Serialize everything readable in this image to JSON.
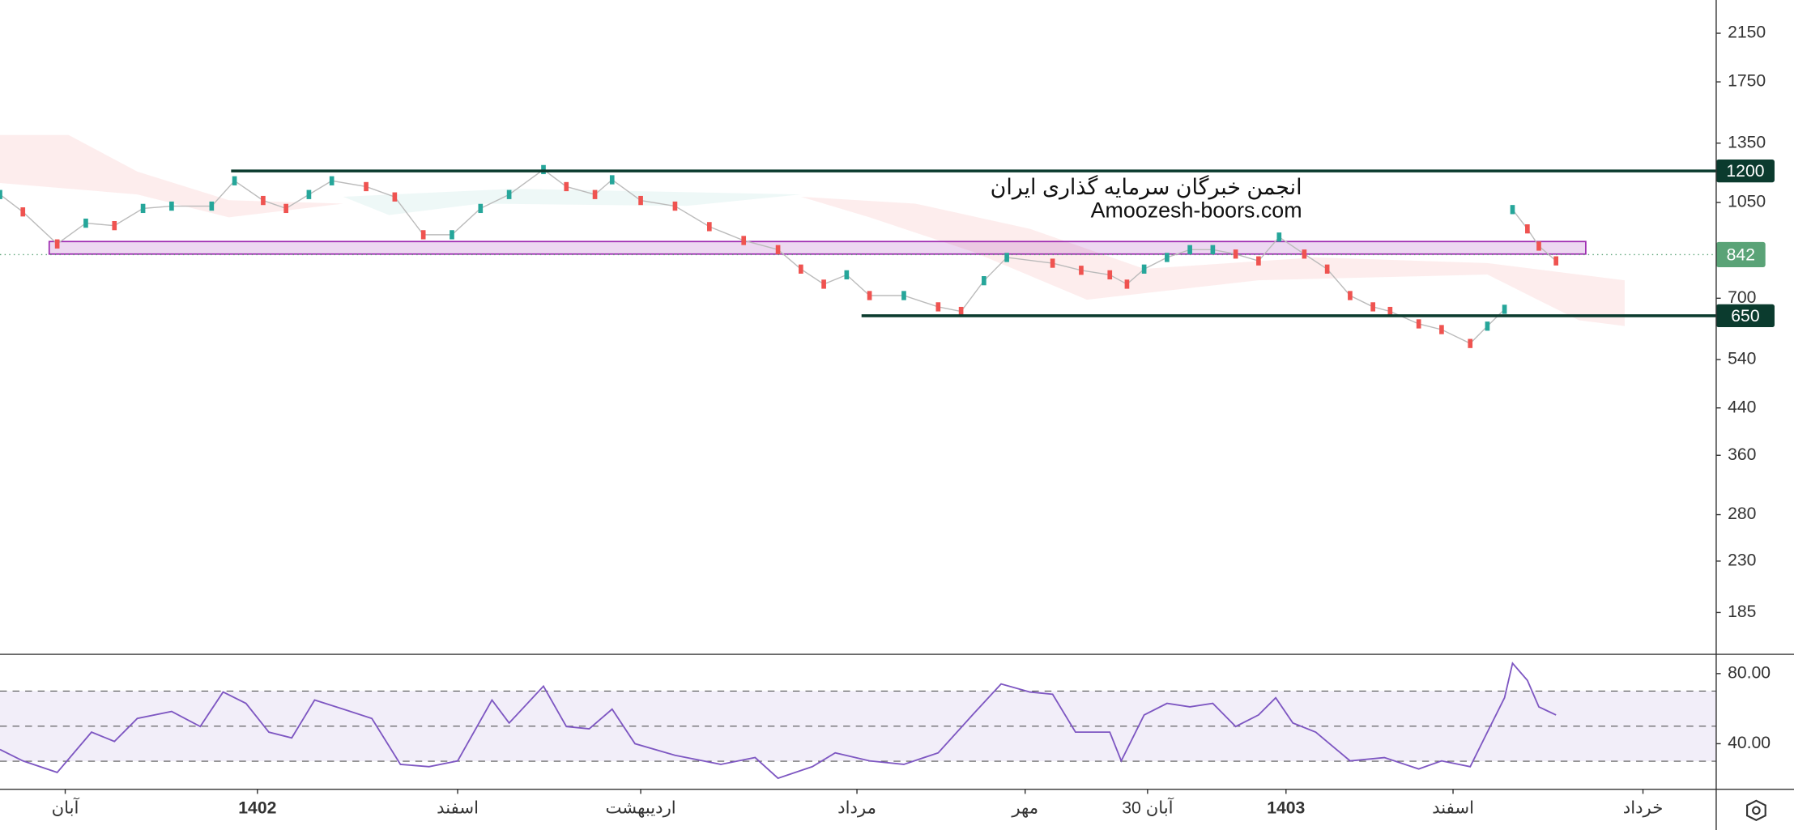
{
  "chart_data": [
    {
      "type": "candle-line",
      "log_scale": true,
      "up_color": "#26a69a",
      "down_color": "#ef5350",
      "xlim": [
        0,
        1500
      ],
      "ylim": [
        155,
        2475
      ],
      "yticks": [
        185,
        230,
        280,
        360,
        440,
        540,
        700,
        1050,
        1350,
        1750,
        2150
      ],
      "x": [
        0,
        20,
        50,
        75,
        100,
        125,
        150,
        185,
        205,
        230,
        250,
        270,
        290,
        320,
        345,
        370,
        395,
        420,
        445,
        475,
        495,
        520,
        535,
        560,
        590,
        620,
        650,
        680,
        700,
        720,
        740,
        760,
        790,
        820,
        840,
        860,
        880,
        920,
        945,
        970,
        985,
        1000,
        1020,
        1040,
        1060,
        1080,
        1100,
        1118,
        1140,
        1160,
        1180,
        1200,
        1215,
        1240,
        1260,
        1285,
        1300,
        1315,
        1318,
        1322,
        1335,
        1345,
        1360
      ],
      "values": [
        1086,
        1009,
        881,
        962,
        952,
        1024,
        1034,
        1034,
        1151,
        1059,
        1024,
        1086,
        1151,
        1123,
        1075,
        916,
        916,
        1024,
        1086,
        1207,
        1123,
        1086,
        1156,
        1059,
        1034,
        948,
        894,
        860,
        792,
        743,
        773,
        708,
        708,
        675,
        662,
        754,
        832,
        812,
        788,
        773,
        743,
        792,
        832,
        860,
        860,
        844,
        820,
        907,
        844,
        792,
        708,
        675,
        662,
        628,
        613,
        578,
        622,
        668,
        null,
        1019,
        939,
        873,
        820
      ],
      "levels": [
        {
          "value": 1200,
          "x_start": 202,
          "color": "#0b3b2e"
        },
        {
          "value": 650,
          "x_start": 753,
          "color": "#0b3b2e"
        }
      ],
      "zone": {
        "range": [
          844,
          890
        ],
        "x_range": [
          43,
          1386
        ],
        "color": "#9c27b0"
      },
      "last_price": {
        "value": 842,
        "color": "#5aa377"
      },
      "annotations": [
        "انجمن خبرگان سرمایه گذاری ایران",
        "Amoozesh-boors.com"
      ]
    },
    {
      "type": "line",
      "color": "#7e57c2",
      "xlim": [
        0,
        1500
      ],
      "ylim": [
        14,
        91
      ],
      "yticks": [
        {
          "value": 80,
          "label": "80.00"
        },
        {
          "value": 40,
          "label": "40.00"
        }
      ],
      "band": [
        30,
        70
      ],
      "guides": [
        30,
        50,
        70
      ],
      "x": [
        0,
        20,
        50,
        80,
        100,
        120,
        150,
        175,
        195,
        215,
        235,
        255,
        275,
        300,
        325,
        350,
        375,
        400,
        430,
        445,
        475,
        495,
        515,
        535,
        555,
        590,
        630,
        660,
        680,
        710,
        730,
        760,
        790,
        820,
        850,
        875,
        900,
        920,
        940,
        970,
        980,
        1000,
        1020,
        1040,
        1060,
        1080,
        1100,
        1115,
        1130,
        1150,
        1180,
        1210,
        1240,
        1260,
        1285,
        1300,
        1315,
        1322,
        1335,
        1345,
        1360
      ],
      "values": [
        36.7,
        30.2,
        23.6,
        46.6,
        41.3,
        54.4,
        58.4,
        49.8,
        69.5,
        63,
        46.6,
        43.3,
        64.9,
        59.7,
        54.4,
        28.2,
        26.9,
        30.2,
        64.9,
        51.8,
        72.8,
        49.8,
        48.5,
        59.7,
        40,
        33.4,
        28.2,
        32.1,
        20.3,
        26.9,
        34.8,
        30.2,
        28.2,
        34.8,
        56.4,
        74.1,
        69.5,
        68.2,
        46.6,
        46.6,
        30.2,
        56.4,
        63,
        61,
        63,
        49.8,
        56.4,
        66.2,
        51.8,
        46.6,
        30.2,
        32.1,
        25.6,
        30.2,
        26.9,
        46.6,
        66.2,
        85.9,
        76.1,
        61,
        56.4
      ],
      "xticks": [
        {
          "value": 57,
          "label": "آبان"
        },
        {
          "value": 225,
          "label": "1402"
        },
        {
          "value": 400,
          "label": "اسفند"
        },
        {
          "value": 560,
          "label": "اردیبهشت"
        },
        {
          "value": 749,
          "label": "مرداد"
        },
        {
          "value": 896,
          "label": "مهر"
        },
        {
          "value": 1003,
          "label": "30 آبان"
        },
        {
          "value": 1124,
          "label": "1403"
        },
        {
          "value": 1270,
          "label": "اسفند"
        },
        {
          "value": 1436,
          "label": "خرداد"
        }
      ]
    }
  ]
}
